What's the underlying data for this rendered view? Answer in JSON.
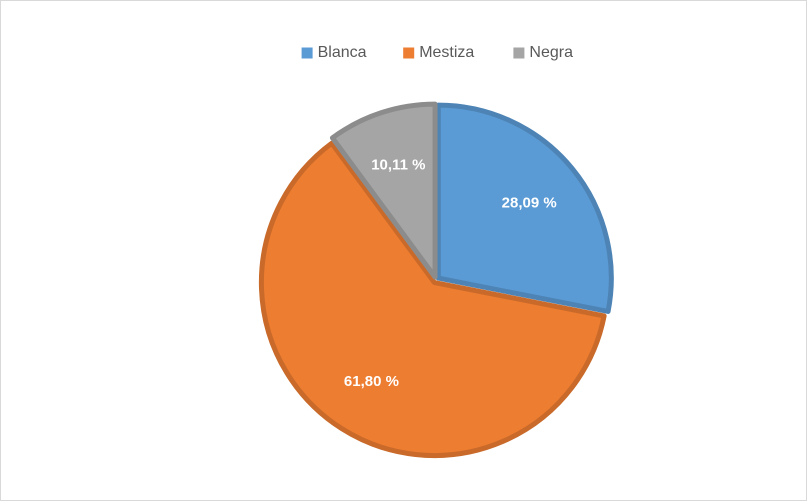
{
  "chart_data": {
    "type": "pie",
    "categories": [
      "Blanca",
      "Mestiza",
      "Negra"
    ],
    "values": [
      28.09,
      61.8,
      10.11
    ],
    "value_labels": [
      "28,09 %",
      "61,80 %",
      "10,11 %"
    ],
    "colors": [
      "#5b9bd5",
      "#ed7d31",
      "#a5a5a5"
    ],
    "legend": "top"
  }
}
